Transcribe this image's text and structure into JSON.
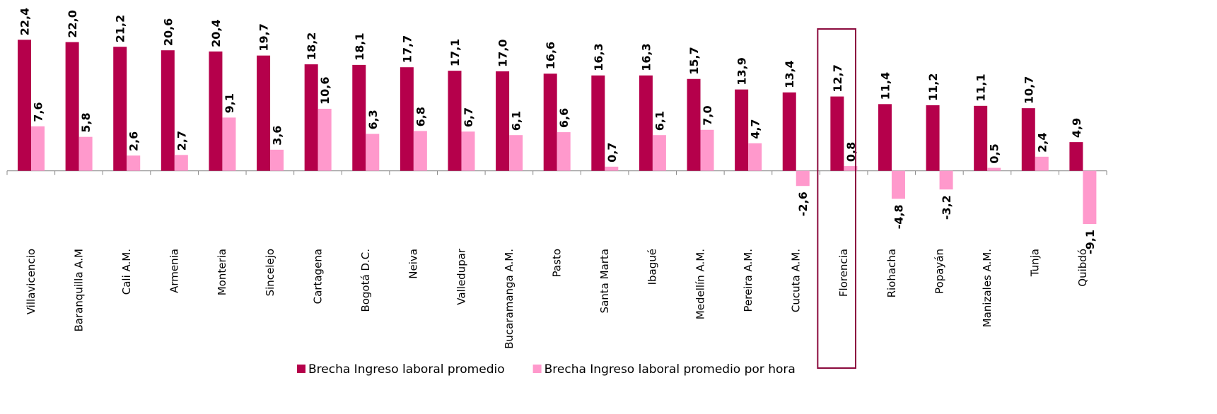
{
  "chart_data": {
    "type": "bar",
    "categories": [
      "Villavicencio",
      "Baranquilla A.M",
      "Cali A.M.",
      "Armenia",
      "Monteria",
      "Sincelejo",
      "Cartagena",
      "Bogotá D.C.",
      "Neiva",
      "Valledupar",
      "Bucaramanga A.M.",
      "Pasto",
      "Santa Marta",
      "Ibagué",
      "Medellín A.M.",
      "Pereira A.M.",
      "Cucuta A.M.",
      "Florencia",
      "Riohacha",
      "Popayán",
      "Manizales A.M.",
      "Tunja",
      "Quibdó"
    ],
    "series": [
      {
        "name": "Brecha Ingreso laboral promedio",
        "color": "#b5004b",
        "values": [
          22.4,
          22.0,
          21.2,
          20.6,
          20.4,
          19.7,
          18.2,
          18.1,
          17.7,
          17.1,
          17.0,
          16.6,
          16.3,
          16.3,
          15.7,
          13.9,
          13.4,
          12.7,
          11.4,
          11.2,
          11.1,
          10.7,
          4.9
        ],
        "value_labels": [
          "22,4",
          "22,0",
          "21,2",
          "20,6",
          "20,4",
          "19,7",
          "18,2",
          "18,1",
          "17,7",
          "17,1",
          "17,0",
          "16,6",
          "16,3",
          "16,3",
          "15,7",
          "13,9",
          "13,4",
          "12,7",
          "11,4",
          "11,2",
          "11,1",
          "10,7",
          "4,9"
        ]
      },
      {
        "name": "Brecha Ingreso laboral promedio por hora",
        "color": "#ff99cc",
        "values": [
          7.6,
          5.8,
          2.6,
          2.7,
          9.1,
          3.6,
          10.6,
          6.3,
          6.8,
          6.7,
          6.1,
          6.6,
          0.7,
          6.1,
          7.0,
          4.7,
          -2.6,
          0.8,
          -4.8,
          -3.2,
          0.5,
          2.4,
          -9.1
        ],
        "value_labels": [
          "7,6",
          "5,8",
          "2,6",
          "2,7",
          "9,1",
          "3,6",
          "10,6",
          "6,3",
          "6,8",
          "6,7",
          "6,1",
          "6,6",
          "0,7",
          "6,1",
          "7,0",
          "4,7",
          "-2,6",
          "0,8",
          "-4,8",
          "-3,2",
          "0,5",
          "2,4",
          "-9,1"
        ]
      }
    ],
    "ylim": [
      -12.6,
      29.2
    ]
  }
}
